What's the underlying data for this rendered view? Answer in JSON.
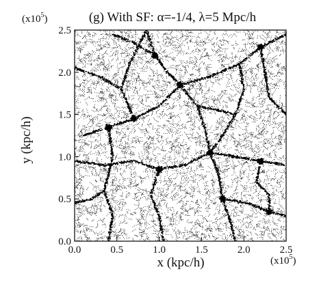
{
  "chart_data": {
    "type": "scatter",
    "title": "(g) With SF: α=-1/4, λ=5 Mpc/h",
    "xlabel": "x (kpc/h)",
    "ylabel": "y (kpc/h)",
    "x_scale_label": {
      "base": "(x10",
      "exp": "5",
      "close": ")"
    },
    "y_scale_label": {
      "base": "(x10",
      "exp": "5",
      "close": ")"
    },
    "xlim": [
      0,
      2.5
    ],
    "ylim": [
      0,
      2.5
    ],
    "xticks": [
      "0.0",
      "0.5",
      "1.0",
      "1.5",
      "2.0",
      "2.5"
    ],
    "yticks": [
      "0.0",
      "0.5",
      "1.0",
      "1.5",
      "2.0",
      "2.5"
    ],
    "xtick_values": [
      0,
      0.5,
      1.0,
      1.5,
      2.0,
      2.5
    ],
    "ytick_values": [
      0,
      0.5,
      1.0,
      1.5,
      2.0,
      2.5
    ],
    "grid": false,
    "marker_color": "#000000",
    "description_of_points": "dense particle distribution forming cosmic-web filaments",
    "filaments": [
      [
        [
          0.85,
          2.5
        ],
        [
          0.95,
          2.2
        ],
        [
          1.1,
          2.0
        ],
        [
          1.25,
          1.85
        ]
      ],
      [
        [
          1.25,
          1.85
        ],
        [
          1.45,
          1.6
        ],
        [
          1.55,
          1.3
        ],
        [
          1.6,
          1.05
        ]
      ],
      [
        [
          1.25,
          1.85
        ],
        [
          1.0,
          1.6
        ],
        [
          0.7,
          1.45
        ],
        [
          0.4,
          1.35
        ],
        [
          0.1,
          1.25
        ]
      ],
      [
        [
          1.25,
          1.85
        ],
        [
          1.6,
          1.95
        ],
        [
          1.95,
          2.1
        ],
        [
          2.2,
          2.3
        ],
        [
          2.5,
          2.45
        ]
      ],
      [
        [
          1.6,
          1.05
        ],
        [
          1.7,
          0.8
        ],
        [
          1.75,
          0.5
        ],
        [
          1.85,
          0.2
        ],
        [
          1.9,
          0.0
        ]
      ],
      [
        [
          1.6,
          1.05
        ],
        [
          1.9,
          1.0
        ],
        [
          2.2,
          0.95
        ],
        [
          2.5,
          0.9
        ]
      ],
      [
        [
          0.0,
          0.95
        ],
        [
          0.35,
          0.9
        ],
        [
          0.7,
          0.95
        ],
        [
          1.0,
          0.85
        ],
        [
          1.3,
          0.9
        ],
        [
          1.6,
          1.05
        ]
      ],
      [
        [
          0.4,
          1.35
        ],
        [
          0.45,
          1.0
        ],
        [
          0.35,
          0.6
        ],
        [
          0.45,
          0.3
        ],
        [
          0.4,
          0.0
        ]
      ],
      [
        [
          0.0,
          2.05
        ],
        [
          0.3,
          1.95
        ],
        [
          0.55,
          1.8
        ],
        [
          0.7,
          1.45
        ]
      ],
      [
        [
          1.75,
          0.5
        ],
        [
          2.05,
          0.45
        ],
        [
          2.3,
          0.35
        ],
        [
          2.5,
          0.3
        ]
      ],
      [
        [
          2.2,
          2.3
        ],
        [
          2.25,
          2.0
        ],
        [
          2.3,
          1.7
        ],
        [
          2.45,
          1.55
        ],
        [
          2.5,
          1.5
        ]
      ],
      [
        [
          0.95,
          2.2
        ],
        [
          0.7,
          2.35
        ],
        [
          0.45,
          2.45
        ]
      ],
      [
        [
          1.0,
          0.85
        ],
        [
          0.9,
          0.55
        ],
        [
          1.0,
          0.3
        ],
        [
          1.05,
          0.0
        ]
      ],
      [
        [
          2.2,
          0.95
        ],
        [
          2.15,
          0.7
        ],
        [
          2.3,
          0.55
        ],
        [
          2.3,
          0.35
        ]
      ],
      [
        [
          1.95,
          2.1
        ],
        [
          2.0,
          1.8
        ],
        [
          1.9,
          1.5
        ],
        [
          1.75,
          1.25
        ],
        [
          1.6,
          1.05
        ]
      ],
      [
        [
          0.0,
          0.45
        ],
        [
          0.2,
          0.5
        ],
        [
          0.35,
          0.6
        ]
      ],
      [
        [
          1.45,
          1.6
        ],
        [
          1.7,
          1.55
        ],
        [
          1.9,
          1.5
        ]
      ],
      [
        [
          0.55,
          1.8
        ],
        [
          0.65,
          2.1
        ],
        [
          0.85,
          2.5
        ]
      ]
    ],
    "clusters": [
      [
        1.25,
        1.85
      ],
      [
        1.6,
        1.05
      ],
      [
        0.4,
        1.35
      ],
      [
        2.2,
        2.3
      ],
      [
        1.75,
        0.5
      ],
      [
        0.95,
        2.2
      ],
      [
        2.2,
        0.95
      ],
      [
        0.7,
        1.45
      ],
      [
        1.0,
        0.85
      ],
      [
        2.3,
        0.35
      ]
    ]
  }
}
